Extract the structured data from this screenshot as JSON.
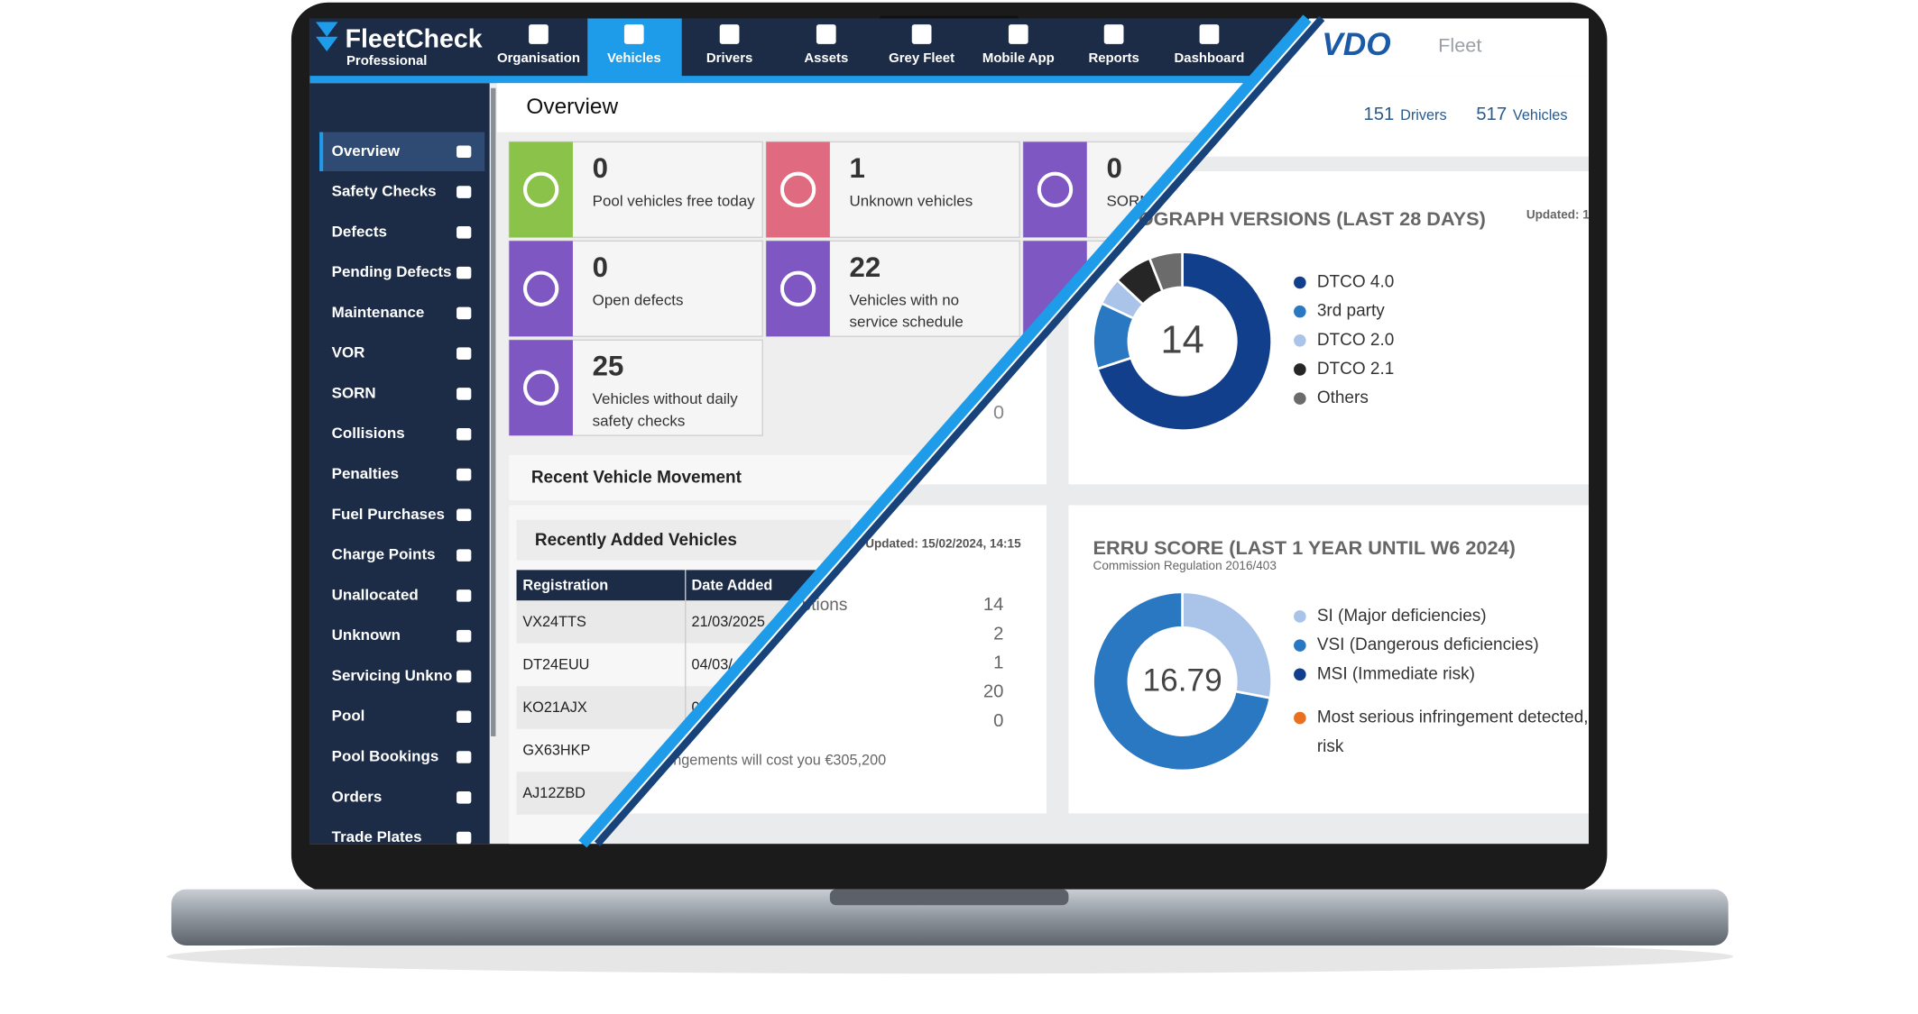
{
  "app": {
    "brand": "FleetCheck",
    "edition": "Professional",
    "nav": [
      "Organisation",
      "Vehicles",
      "Drivers",
      "Assets",
      "Grey Fleet",
      "Mobile App",
      "Reports",
      "Dashboard"
    ],
    "sidebar": [
      "Overview",
      "Safety Checks",
      "Defects",
      "Pending Defects",
      "Maintenance",
      "VOR",
      "SORN",
      "Collisions",
      "Penalties",
      "Fuel Purchases",
      "Charge Points",
      "Unallocated",
      "Unknown",
      "Servicing Unkno",
      "Pool",
      "Pool Bookings",
      "Orders",
      "Trade Plates"
    ],
    "page_title": "Overview",
    "tiles": [
      {
        "value": 0,
        "label": [
          "Pool vehicles free today"
        ]
      },
      {
        "value": 1,
        "label": [
          "Unknown vehicles"
        ]
      },
      {
        "value": 0,
        "label": [
          "SORN"
        ]
      },
      {
        "value": 0,
        "label": [
          "Open defects"
        ]
      },
      {
        "value": 22,
        "label": [
          "Vehicles with no",
          "service schedule"
        ]
      },
      {
        "value": 25,
        "label": [
          "Vehicles without daily",
          "safety checks"
        ]
      }
    ],
    "movement_title": "Recent Vehicle Movement",
    "recent": {
      "title": "Recently Added Vehicles",
      "columns": [
        "Registration",
        "Date Added"
      ],
      "rows": [
        [
          "VX24TTS",
          "21/03/2025"
        ],
        [
          "DT24EUU",
          "04/03/"
        ],
        [
          "KO21AJX",
          "0"
        ],
        [
          "GX63HKP"
        ],
        [
          "AJ12ZBD"
        ]
      ]
    }
  },
  "vdo": {
    "brand": "VDO",
    "product": "Fleet",
    "drivers": 151,
    "drivers_label": "Drivers",
    "vehicles": 517,
    "vehicles_label": "Vehicles",
    "stat": 0,
    "updated": "Updated: 15/02/2024, 14:15",
    "list_label": "ptions",
    "list_values": [
      14,
      2,
      1,
      20,
      0
    ],
    "cost_note": "ngements will cost you €305,200",
    "tacho": {
      "title": "OGRAPH VERSIONS (LAST 28 DAYS)",
      "updated": "Updated: 1",
      "total": 14,
      "segments": [
        {
          "name": "DTCO 4.0",
          "color": "#123f8c",
          "value": 70
        },
        {
          "name": "3rd party",
          "color": "#2a78c2",
          "value": 12
        },
        {
          "name": "DTCO 2.0",
          "color": "#a9c4e8",
          "value": 5
        },
        {
          "name": "DTCO 2.1",
          "color": "#262626",
          "value": 7
        },
        {
          "name": "Others",
          "color": "#6b6b6b",
          "value": 6
        }
      ]
    },
    "erru": {
      "title": "ERRU SCORE (LAST 1 YEAR UNTIL W6 2024)",
      "subtitle": "Commission Regulation 2016/403",
      "score": 16.79,
      "segments": [
        {
          "name": "SI (Major deficiencies)",
          "color": "#a9c4e8",
          "value": 28
        },
        {
          "name": "VSI (Dangerous deficiencies)",
          "color": "#2a78c2",
          "value": 72
        },
        {
          "name": "MSI (Immediate risk)",
          "color": "#123f8c",
          "value": 0
        }
      ],
      "note": [
        "Most serious infringement detected, y",
        "risk"
      ],
      "note_color": "#e8701e"
    }
  }
}
